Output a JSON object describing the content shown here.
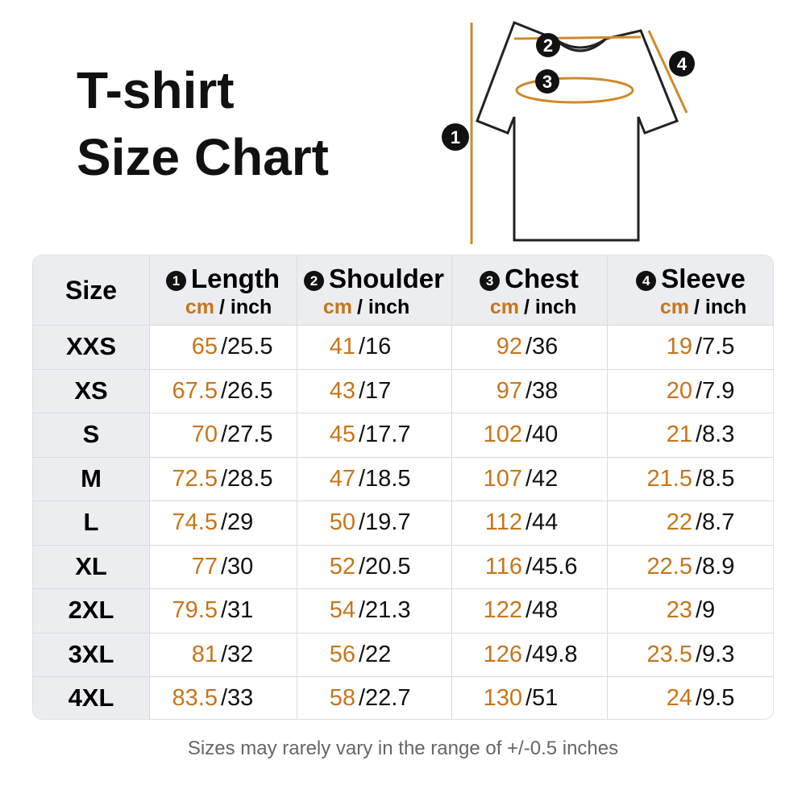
{
  "header": {
    "title_lines": [
      "T-shirt",
      "Size Chart"
    ]
  },
  "diagram": {
    "markers": [
      "1",
      "2",
      "3",
      "4"
    ]
  },
  "table": {
    "size_header": "Size",
    "columns": [
      {
        "number": "1",
        "name": "Length",
        "unit_cm": "cm",
        "unit_inch": "/ inch"
      },
      {
        "number": "2",
        "name": "Shoulder",
        "unit_cm": "cm",
        "unit_inch": "/ inch"
      },
      {
        "number": "3",
        "name": "Chest",
        "unit_cm": "cm",
        "unit_inch": "/ inch"
      },
      {
        "number": "4",
        "name": "Sleeve",
        "unit_cm": "cm",
        "unit_inch": "/ inch"
      }
    ],
    "rows": [
      {
        "size": "XXS",
        "cells": [
          {
            "cm": "65",
            "inch": "/25.5"
          },
          {
            "cm": "41",
            "inch": "/16"
          },
          {
            "cm": "92",
            "inch": "/36"
          },
          {
            "cm": "19",
            "inch": "/7.5"
          }
        ]
      },
      {
        "size": "XS",
        "cells": [
          {
            "cm": "67.5",
            "inch": "/26.5"
          },
          {
            "cm": "43",
            "inch": "/17"
          },
          {
            "cm": "97",
            "inch": "/38"
          },
          {
            "cm": "20",
            "inch": "/7.9"
          }
        ]
      },
      {
        "size": "S",
        "cells": [
          {
            "cm": "70",
            "inch": "/27.5"
          },
          {
            "cm": "45",
            "inch": "/17.7"
          },
          {
            "cm": "102",
            "inch": "/40"
          },
          {
            "cm": "21",
            "inch": "/8.3"
          }
        ]
      },
      {
        "size": "M",
        "cells": [
          {
            "cm": "72.5",
            "inch": "/28.5"
          },
          {
            "cm": "47",
            "inch": "/18.5"
          },
          {
            "cm": "107",
            "inch": "/42"
          },
          {
            "cm": "21.5",
            "inch": "/8.5"
          }
        ]
      },
      {
        "size": "L",
        "cells": [
          {
            "cm": "74.5",
            "inch": "/29"
          },
          {
            "cm": "50",
            "inch": "/19.7"
          },
          {
            "cm": "112",
            "inch": "/44"
          },
          {
            "cm": "22",
            "inch": "/8.7"
          }
        ]
      },
      {
        "size": "XL",
        "cells": [
          {
            "cm": "77",
            "inch": "/30"
          },
          {
            "cm": "52",
            "inch": "/20.5"
          },
          {
            "cm": "116",
            "inch": "/45.6"
          },
          {
            "cm": "22.5",
            "inch": "/8.9"
          }
        ]
      },
      {
        "size": "2XL",
        "cells": [
          {
            "cm": "79.5",
            "inch": "/31"
          },
          {
            "cm": "54",
            "inch": "/21.3"
          },
          {
            "cm": "122",
            "inch": "/48"
          },
          {
            "cm": "23",
            "inch": "/9"
          }
        ]
      },
      {
        "size": "3XL",
        "cells": [
          {
            "cm": "81",
            "inch": "/32"
          },
          {
            "cm": "56",
            "inch": "/22"
          },
          {
            "cm": "126",
            "inch": "/49.8"
          },
          {
            "cm": "23.5",
            "inch": "/9.3"
          }
        ]
      },
      {
        "size": "4XL",
        "cells": [
          {
            "cm": "83.5",
            "inch": "/33"
          },
          {
            "cm": "58",
            "inch": "/22.7"
          },
          {
            "cm": "130",
            "inch": "/51"
          },
          {
            "cm": "24",
            "inch": "/9.5"
          }
        ]
      }
    ]
  },
  "footer": {
    "note": "Sizes may rarely vary in the range of +/-0.5 inches"
  }
}
